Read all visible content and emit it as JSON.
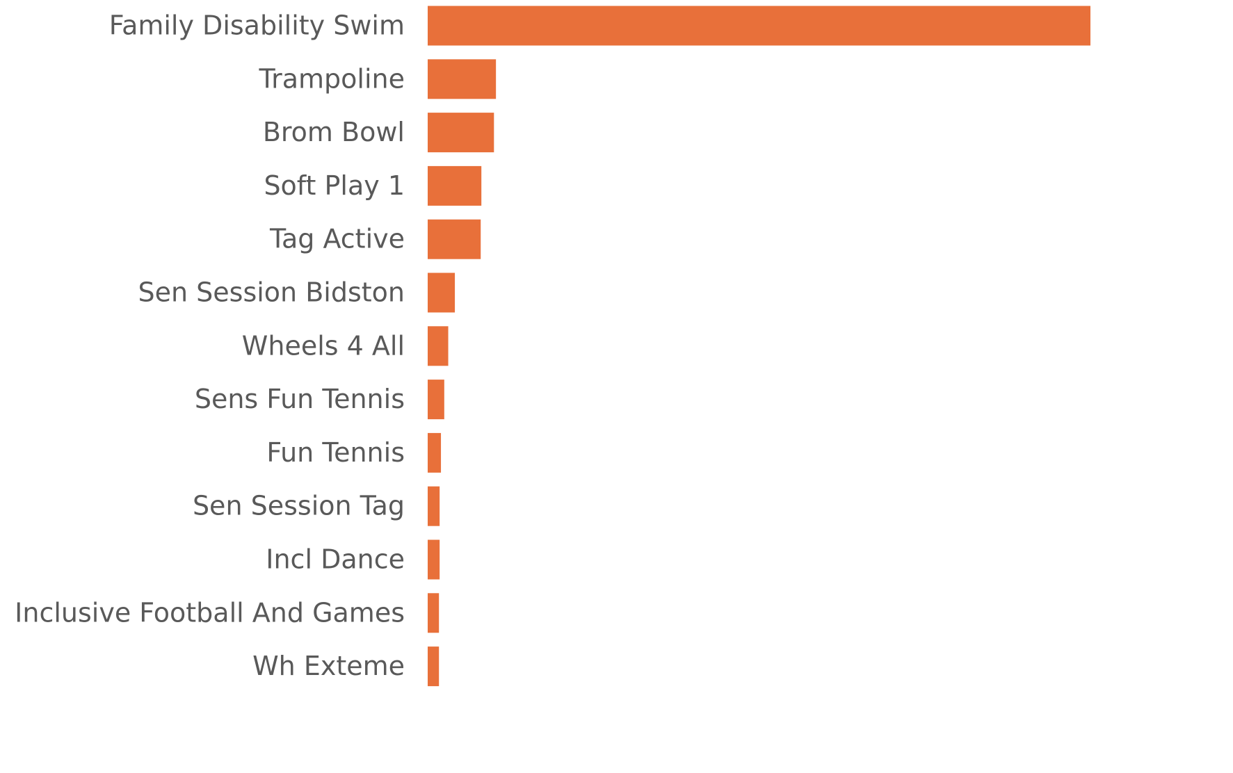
{
  "chart_data": {
    "type": "hbar",
    "categories": [
      "Family Disability Swim",
      "Trampoline",
      "Brom Bowl",
      "Soft Play 1",
      "Tag Active",
      "Sen Session Bidston",
      "Wheels 4 All",
      "Sens Fun Tennis",
      "Fun Tennis",
      "Sen Session Tag",
      "Incl Dance",
      "Inclusive Football And Games",
      "Wh Exteme"
    ],
    "values": [
      100,
      10.3,
      10.0,
      8.1,
      8.0,
      4.1,
      3.1,
      2.5,
      2.0,
      1.8,
      1.8,
      1.7,
      1.7
    ],
    "color": "#e8703a",
    "xlim": [
      0,
      100
    ]
  }
}
